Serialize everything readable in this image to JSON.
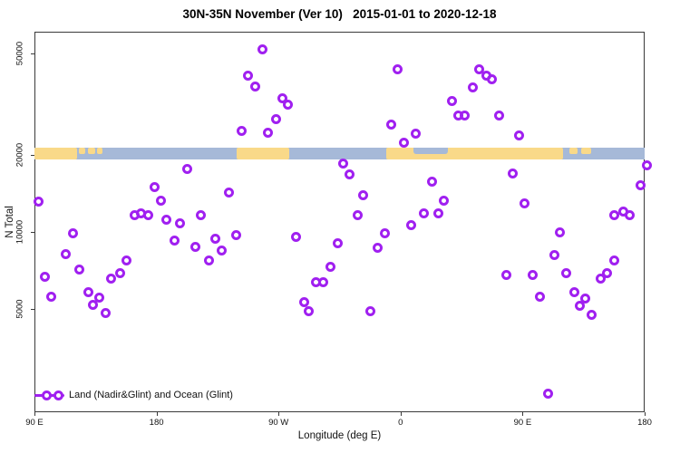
{
  "chart_data": {
    "type": "scatter",
    "title": "30N-35N November (Ver 10)   2015-01-01 to 2020-12-18",
    "xlabel": "Longitude (deg E)",
    "ylabel": "N Total",
    "x_scale_note": "longitude plotted continuously eastward starting at 90E: 90=90E, 180=180, 270=90W, 360=0, 450=90E, 540=180",
    "x_range": [
      90,
      540
    ],
    "x_ticks": [
      {
        "pos": 90,
        "label": "90 E"
      },
      {
        "pos": 180,
        "label": "180"
      },
      {
        "pos": 270,
        "label": "90 W"
      },
      {
        "pos": 360,
        "label": "0"
      },
      {
        "pos": 450,
        "label": "90 E"
      },
      {
        "pos": 540,
        "label": "180"
      }
    ],
    "y_scale": "log",
    "y_ticks": [
      5000,
      10000,
      20000,
      50000
    ],
    "legend_label": "Land (Nadir&Glint) and Ocean (Glint)",
    "points": [
      [
        92.7,
        13100
      ],
      [
        203.0,
        17570
      ],
      [
        178.3,
        14930
      ],
      [
        183.0,
        13200
      ],
      [
        233.1,
        14320
      ],
      [
        163.6,
        11670
      ],
      [
        168.9,
        11780
      ],
      [
        173.6,
        11670
      ],
      [
        213.0,
        11670
      ],
      [
        187.6,
        11120
      ],
      [
        197.0,
        10840
      ],
      [
        257.9,
        52000
      ],
      [
        357.5,
        43450
      ],
      [
        247.8,
        41030
      ],
      [
        252.5,
        37230
      ],
      [
        273.2,
        33480
      ],
      [
        277.2,
        31620
      ],
      [
        267.9,
        27740
      ],
      [
        243.1,
        24950
      ],
      [
        261.9,
        24550
      ],
      [
        352.8,
        26420
      ],
      [
        362.2,
        22440
      ],
      [
        371.5,
        24160
      ],
      [
        318.0,
        18450
      ],
      [
        322.1,
        16860
      ],
      [
        332.1,
        13870
      ],
      [
        382.9,
        15670
      ],
      [
        328.1,
        11670
      ],
      [
        376.9,
        11860
      ],
      [
        388.2,
        11860
      ],
      [
        392.2,
        13300
      ],
      [
        417.7,
        43450
      ],
      [
        423.0,
        41030
      ],
      [
        427.0,
        39450
      ],
      [
        413.0,
        36640
      ],
      [
        397.6,
        32430
      ],
      [
        402.3,
        28450
      ],
      [
        407.6,
        28450
      ],
      [
        432.4,
        28450
      ],
      [
        447.1,
        23930
      ],
      [
        442.4,
        16980
      ],
      [
        451.1,
        12970
      ],
      [
        536.7,
        15280
      ],
      [
        541.5,
        18280
      ],
      [
        517.3,
        11590
      ],
      [
        524.0,
        11970
      ],
      [
        529.3,
        11670
      ],
      [
        118.1,
        9910
      ],
      [
        113.4,
        8220
      ],
      [
        98.0,
        6700
      ],
      [
        122.8,
        7100
      ],
      [
        102.7,
        5600
      ],
      [
        129.5,
        5830
      ],
      [
        132.8,
        5200
      ],
      [
        137.5,
        5510
      ],
      [
        142.8,
        4800
      ],
      [
        146.8,
        6590
      ],
      [
        152.9,
        6870
      ],
      [
        158.2,
        7710
      ],
      [
        193.0,
        9220
      ],
      [
        208.4,
        8710
      ],
      [
        218.4,
        7710
      ],
      [
        223.1,
        9440
      ],
      [
        238.5,
        9750
      ],
      [
        228.4,
        8490
      ],
      [
        282.6,
        9590
      ],
      [
        313.4,
        9060
      ],
      [
        308.0,
        7330
      ],
      [
        297.3,
        6380
      ],
      [
        302.7,
        6380
      ],
      [
        288.6,
        5290
      ],
      [
        292.6,
        4880
      ],
      [
        337.4,
        4910
      ],
      [
        342.8,
        8640
      ],
      [
        348.1,
        9840
      ],
      [
        367.5,
        10670
      ],
      [
        477.2,
        10000
      ],
      [
        473.2,
        8150
      ],
      [
        517.3,
        7710
      ],
      [
        437.7,
        6810
      ],
      [
        457.1,
        6760
      ],
      [
        481.9,
        6920
      ],
      [
        507.3,
        6590
      ],
      [
        512.0,
        6870
      ],
      [
        462.5,
        5600
      ],
      [
        488.5,
        5830
      ],
      [
        491.9,
        5160
      ],
      [
        496.5,
        5470
      ],
      [
        501.2,
        4750
      ],
      [
        468.5,
        2320
      ]
    ]
  },
  "map_strip": {
    "description": "coastline band drawn across the plot at N = 20000 showing land (yellow) and ocean (blue) along the 30N-35N latitude belt",
    "at_value": 20000,
    "land_segments": [
      {
        "from": 90.0,
        "to": 121.4,
        "cover": "full"
      },
      {
        "from": 122.8,
        "to": 127.4,
        "cover": "top"
      },
      {
        "from": 129.5,
        "to": 134.8,
        "cover": "top"
      },
      {
        "from": 136.1,
        "to": 140.2,
        "cover": "top"
      },
      {
        "from": 239.1,
        "to": 277.9,
        "cover": "full"
      },
      {
        "from": 349.4,
        "to": 479.8,
        "cover": "full"
      },
      {
        "from": 484.5,
        "to": 490.5,
        "cover": "top"
      },
      {
        "from": 493.2,
        "to": 500.6,
        "cover": "top"
      }
    ],
    "ocean_insets": [
      {
        "from": 369.5,
        "to": 394.9,
        "cover": "top"
      }
    ]
  },
  "colors": {
    "marker": "#A020F0",
    "land": "#F9D989",
    "ocean": "#A6B9D8",
    "frame": "#3a3a3a",
    "text": "#111111"
  }
}
